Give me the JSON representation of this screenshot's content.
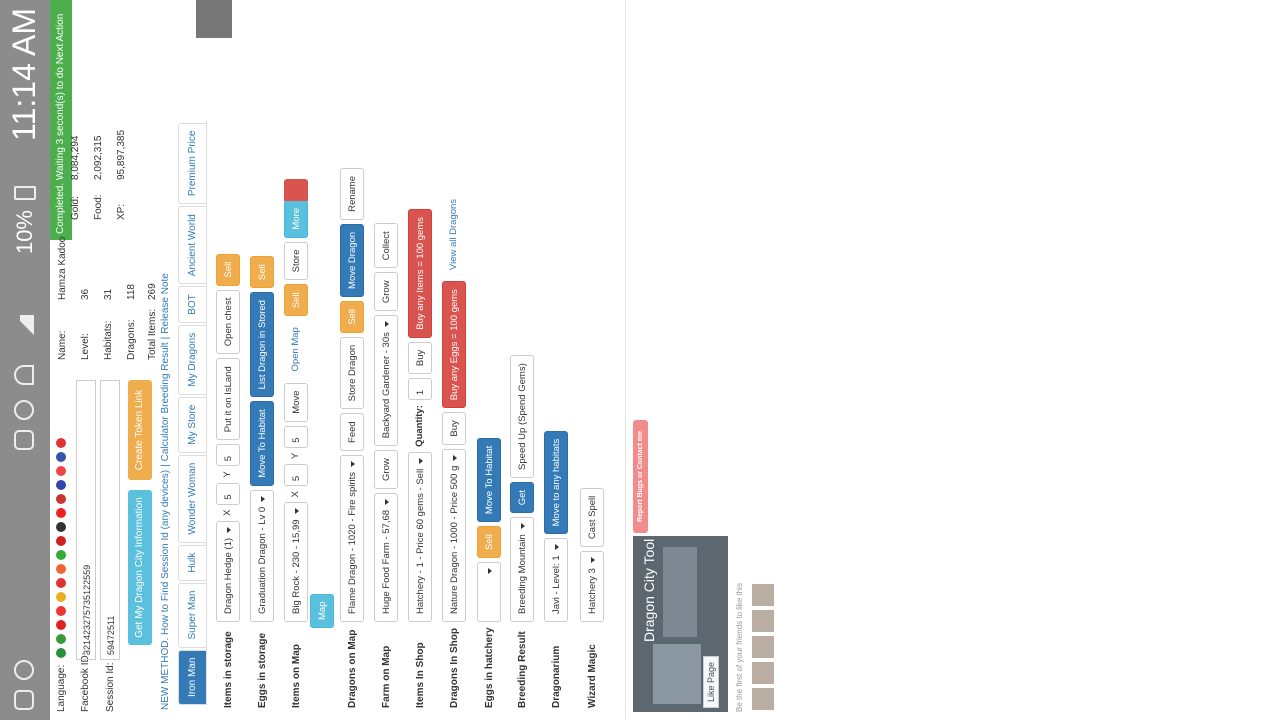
{
  "status_bar": {
    "time": "11:14 AM",
    "battery": "10%"
  },
  "notification": "Completed. Waiting 3 second(s) to do Next Action",
  "form": {
    "language_label": "Language:",
    "facebook_id_label": "Facebook ID:",
    "facebook_id": "321423275735122559",
    "session_id_label": "Session Id:",
    "session_id": "59472511",
    "info_button": "Get My Dragon City Information",
    "token_button": "Create Token Link"
  },
  "profile": [
    {
      "label": "Name:",
      "value": "Hamza Kadoo"
    },
    {
      "label": "Level:",
      "value": "36"
    },
    {
      "label": "Habitats:",
      "value": "31"
    },
    {
      "label": "Dragons:",
      "value": "118"
    },
    {
      "label": "Total Items:",
      "value": "269"
    },
    {
      "label": "Gold:",
      "value": "8,084,294"
    },
    {
      "label": "Food:",
      "value": "2,092,315"
    },
    {
      "label": "XP:",
      "value": "95,897,385"
    }
  ],
  "links": {
    "separator": "|",
    "items": [
      "NEW METHOD. How to Find Session Id (any devices)",
      "Calculator Breeding Result",
      "Release Note"
    ]
  },
  "tabs": [
    "Iron Man",
    "Super Man",
    "Hulk",
    "Wonder Woman",
    "My Store",
    "My Dragons",
    "BOT",
    "Ancient World",
    "Premium Price"
  ],
  "rows": [
    {
      "label": "Items in storage",
      "controls": [
        {
          "type": "select",
          "text": "Dragon Hedge (1)"
        },
        {
          "type": "text",
          "text": "X"
        },
        {
          "type": "input",
          "text": "5"
        },
        {
          "type": "text",
          "text": "Y"
        },
        {
          "type": "input",
          "text": "5"
        },
        {
          "type": "btn",
          "text": "Put it on IsLand"
        },
        {
          "type": "btn",
          "text": "Open chest"
        },
        {
          "type": "orange",
          "text": "Sell"
        }
      ]
    },
    {
      "label": "Eggs in storage",
      "controls": [
        {
          "type": "select",
          "text": "Graduation Dragon - Lv 0"
        },
        {
          "type": "blue",
          "text": "Move To Habitat"
        },
        {
          "type": "blue",
          "text": "List Dragon in Stored"
        },
        {
          "type": "orange",
          "text": "Sell"
        }
      ]
    },
    {
      "label": "Items on Map",
      "controls": [
        {
          "type": "select",
          "text": "Big Rock - 230 - 15,99"
        },
        {
          "type": "text",
          "text": "X"
        },
        {
          "type": "input",
          "text": "5"
        },
        {
          "type": "text",
          "text": "Y"
        },
        {
          "type": "input",
          "text": "5"
        },
        {
          "type": "btn",
          "text": "Move"
        },
        {
          "type": "link",
          "text": "Open Map"
        },
        {
          "type": "orange",
          "text": "Sell"
        },
        {
          "type": "btn",
          "text": "Store"
        },
        {
          "type": "cyan-split",
          "text": "More"
        }
      ],
      "controls2": [
        {
          "type": "cyan-pre",
          "text": "Map"
        }
      ]
    },
    {
      "label": "Dragons on Map",
      "controls": [
        {
          "type": "select",
          "text": "Flame Dragon - 1020 - Fire spirits"
        },
        {
          "type": "btn",
          "text": "Feed"
        },
        {
          "type": "btn",
          "text": "Store Dragon"
        },
        {
          "type": "orange",
          "text": "Sell"
        },
        {
          "type": "blue",
          "text": "Move Dragon"
        },
        {
          "type": "btn",
          "text": "Rename"
        }
      ]
    },
    {
      "label": "Farm on Map",
      "controls": [
        {
          "type": "select",
          "text": "Huge Food Farm - 57,68"
        },
        {
          "type": "btn",
          "text": "Grow"
        },
        {
          "type": "select",
          "text": "Backyard Gardener - 30s"
        },
        {
          "type": "btn",
          "text": "Grow"
        },
        {
          "type": "btn",
          "text": "Collect"
        }
      ]
    },
    {
      "label": "Items In Shop",
      "controls": [
        {
          "type": "select",
          "text": "Hatchery - 1 - Price 60 gems - Sell"
        },
        {
          "type": "bold",
          "text": "Quantity:"
        },
        {
          "type": "input",
          "text": "1"
        },
        {
          "type": "btn",
          "text": "Buy"
        },
        {
          "type": "red",
          "text": "Buy any Items = 100 gems"
        }
      ]
    },
    {
      "label": "Dragons In Shop",
      "controls": [
        {
          "type": "select",
          "text": "Nature Dragon - 1000 - Price 500 g"
        },
        {
          "type": "btn",
          "text": "Buy"
        },
        {
          "type": "red",
          "text": "Buy any Eggs = 100 gems"
        },
        {
          "type": "link",
          "text": "View all Dragons"
        }
      ]
    },
    {
      "label": "Eggs in hatchery",
      "controls": [
        {
          "type": "select",
          "text": ""
        },
        {
          "type": "orange",
          "text": "Sell"
        },
        {
          "type": "blue",
          "text": "Move To Habitat"
        }
      ]
    },
    {
      "label": "Breeding Result",
      "controls": [
        {
          "type": "select",
          "text": "Breeding Mountain"
        },
        {
          "type": "blue",
          "text": "Get"
        },
        {
          "type": "btn",
          "text": "Speed Up (Spend Gems)"
        }
      ]
    },
    {
      "label": "Dragonarium",
      "controls": [
        {
          "type": "select",
          "text": "Javi - Level: 1"
        },
        {
          "type": "blue",
          "text": "Move to any habitats"
        }
      ]
    },
    {
      "label": "Wizard Magic",
      "controls": [
        {
          "type": "select",
          "text": "Hatchery 3"
        },
        {
          "type": "btn",
          "text": "Cast Spell"
        }
      ]
    }
  ],
  "widget": {
    "title": "Dragon City Tool",
    "like": "Like Page",
    "friends": "Be the first of your friends to like this"
  },
  "report": "Report Bugs or Contact me"
}
